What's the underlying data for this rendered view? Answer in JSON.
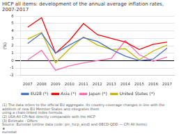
{
  "chart_data": {
    "type": "line",
    "title": "HICP all items: development of the annual average inflation rates, 2007-2017",
    "y_label": "(%)",
    "x": [
      2007,
      2008,
      2009,
      2010,
      2011,
      2012,
      2013,
      2014,
      2015,
      2016,
      2017
    ],
    "series": [
      {
        "name": "EU28 (*)",
        "color": "#4472c4",
        "values": [
          2.3,
          3.7,
          1.0,
          2.1,
          3.1,
          2.6,
          1.5,
          0.6,
          0.0,
          0.2,
          1.7
        ]
      },
      {
        "name": "Asia (*)",
        "color": "#ff0000",
        "values": [
          4.5,
          5.8,
          1.0,
          2.7,
          5.0,
          3.5,
          3.0,
          2.5,
          1.5,
          2.2,
          2.5
        ]
      },
      {
        "name": "Japan (*)",
        "color": "#ff69b4",
        "values": [
          0.1,
          1.4,
          -1.3,
          -0.7,
          -0.3,
          0.0,
          0.3,
          2.7,
          0.8,
          -0.1,
          0.5
        ]
      },
      {
        "name": "United States (*)",
        "color": "#c8b400",
        "values": [
          2.9,
          3.8,
          -0.3,
          1.6,
          3.2,
          2.1,
          1.5,
          1.6,
          0.1,
          1.3,
          2.1
        ]
      }
    ],
    "xlim": [
      2006.5,
      2017.5
    ],
    "xticks": [
      2007,
      2008,
      2009,
      2010,
      2011,
      2012,
      2013,
      2014,
      2015,
      2016,
      2017
    ],
    "ylim": [
      -2,
      6
    ],
    "yticks": [
      -2,
      -1,
      0,
      1,
      2,
      3,
      4,
      5,
      6
    ],
    "grid": "y",
    "legend": "bottom",
    "annotations": [
      "(1) The data refers to the official EU aggregate. Its country-coverage changes in line with the addition of new EU Member States and integrates them",
      "using a chain-linked index formula.",
      "(2) USA-All CPI-Not directly comparable with the HICP",
      "(3) Estimate - Offers",
      "Source: Eurostat (online data code: prc_hicp_aind) and OECD-QDD — CPI All Items)",
      "★",
      "eurostat"
    ]
  }
}
